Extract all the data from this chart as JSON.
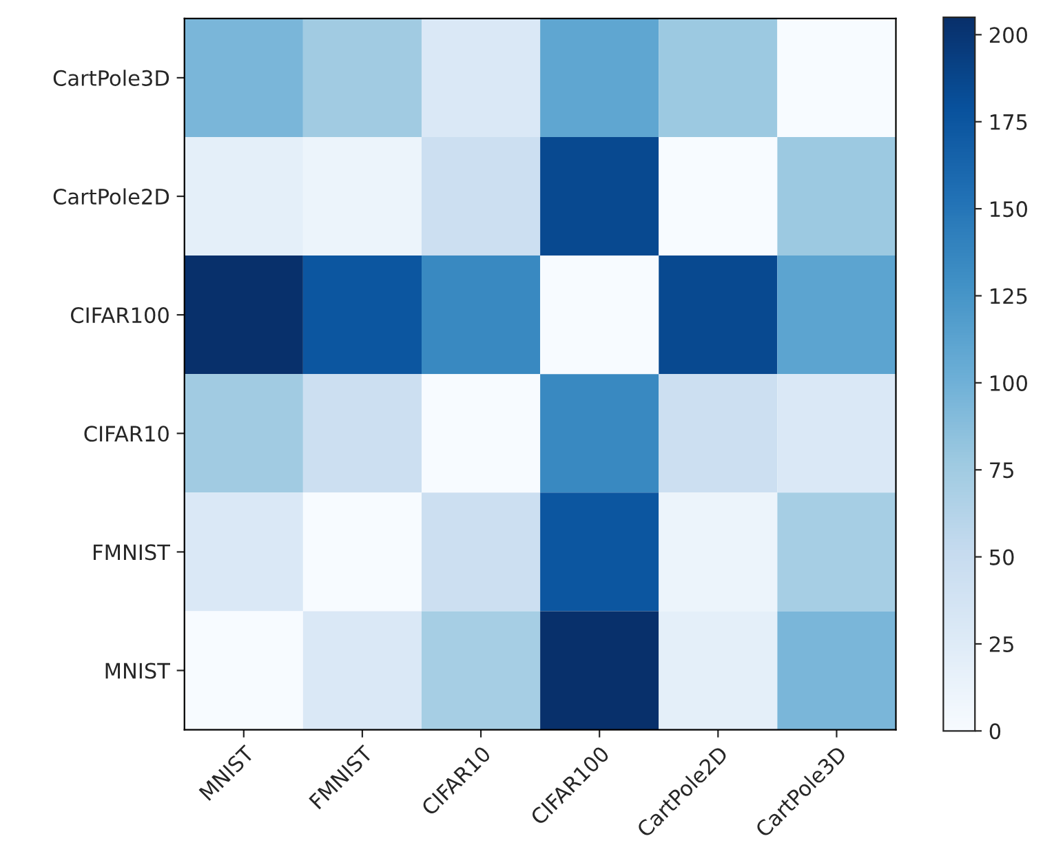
{
  "chart_data": {
    "type": "heatmap",
    "categories": [
      "MNIST",
      "FMNIST",
      "CIFAR10",
      "CIFAR100",
      "CartPole2D",
      "CartPole3D"
    ],
    "y_categories": [
      "CartPole3D",
      "CartPole2D",
      "CIFAR100",
      "CIFAR10",
      "FMNIST",
      "MNIST"
    ],
    "cells": [
      [
        95,
        75,
        30,
        110,
        78,
        0
      ],
      [
        20,
        12,
        45,
        185,
        0,
        78
      ],
      [
        205,
        175,
        135,
        0,
        185,
        112
      ],
      [
        75,
        45,
        0,
        135,
        45,
        30
      ],
      [
        30,
        0,
        45,
        175,
        12,
        72
      ],
      [
        0,
        30,
        72,
        205,
        20,
        95
      ]
    ],
    "clim": [
      0,
      205
    ],
    "cticks": [
      0,
      25,
      50,
      75,
      100,
      125,
      150,
      175,
      200
    ],
    "grid": false
  }
}
